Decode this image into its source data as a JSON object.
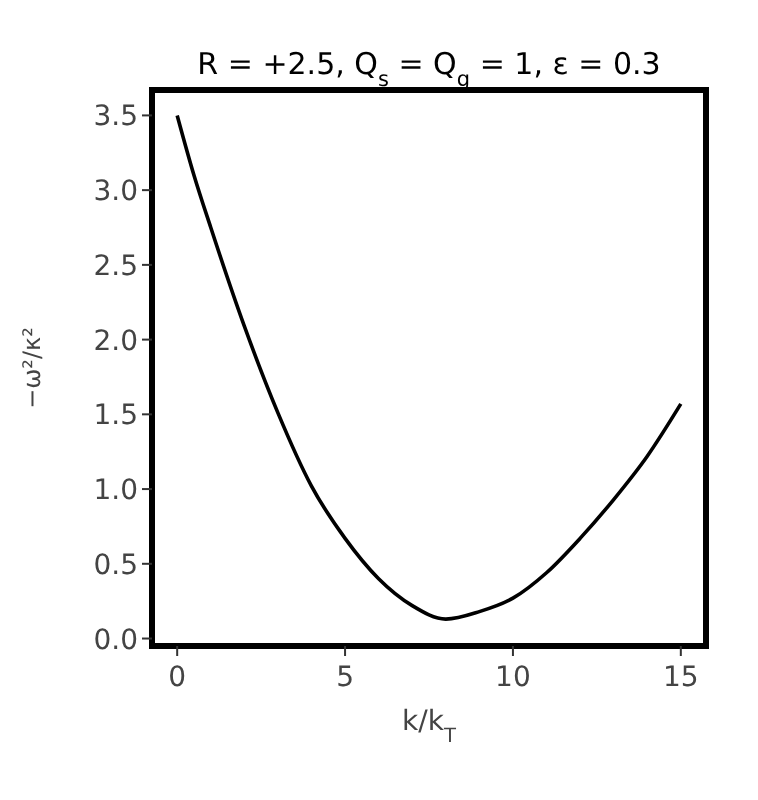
{
  "chart_data": {
    "type": "line",
    "title": "R = +2.5, Q$_{s}$ = Q$_{g}$ = 1, ε = 0.3",
    "xlabel": "k/k$_{T}$",
    "ylabel": "−ω²/κ²",
    "x": [
      0,
      0.5,
      1,
      2,
      3,
      4,
      5,
      6,
      7,
      8,
      9,
      10,
      11,
      12,
      13,
      14,
      15
    ],
    "series": [
      {
        "color": "#000000",
        "values": [
          3.5,
          3.1,
          2.75,
          2.09,
          1.51,
          1.02,
          0.67,
          0.4,
          0.22,
          0.13,
          0.18,
          0.27,
          0.44,
          0.67,
          0.93,
          1.22,
          1.57
        ]
      }
    ],
    "xlim": [
      -0.75,
      15.75
    ],
    "ylim": [
      -0.05,
      3.67
    ],
    "xticks": [
      0,
      5,
      10,
      15
    ],
    "yticks": [
      {
        "value": 0,
        "label": "0.0"
      },
      {
        "value": 0.5,
        "label": "0.5"
      },
      {
        "value": 1,
        "label": "1.0"
      },
      {
        "value": 1.5,
        "label": "1.5"
      },
      {
        "value": 2,
        "label": "2.0"
      },
      {
        "value": 2.5,
        "label": "2.5"
      },
      {
        "value": 3,
        "label": "3.0"
      },
      {
        "value": 3.5,
        "label": "3.5"
      }
    ],
    "grid": false,
    "marker": "none",
    "line_style": "solid"
  }
}
